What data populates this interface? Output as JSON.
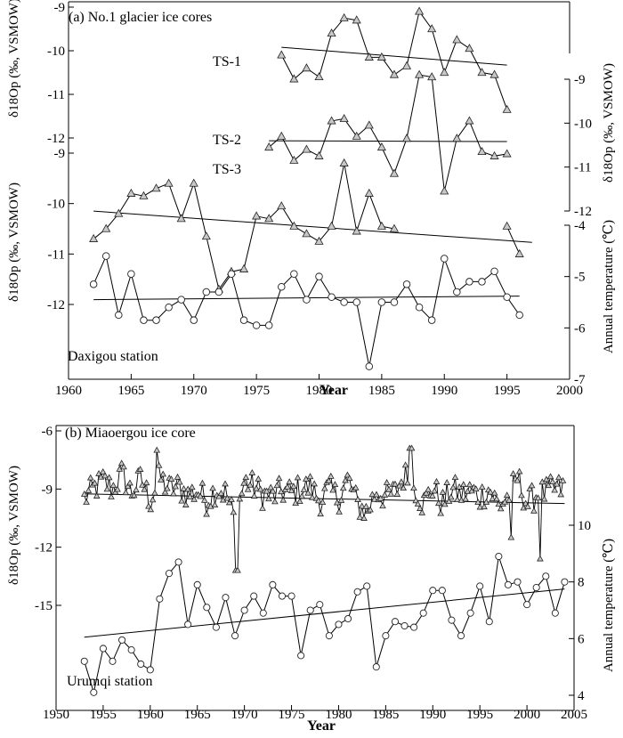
{
  "chart_data": [
    {
      "type": "line",
      "title": "(a) No.1 glacier ice cores",
      "xlabel": "Year",
      "xlim": [
        1960,
        2000
      ],
      "xticks": [
        1960,
        1965,
        1970,
        1975,
        1980,
        1985,
        1990,
        1995,
        2000
      ],
      "axes": [
        {
          "id": "ts1_axis",
          "label": "δ18Op (‰, VSMOW)",
          "side": "left",
          "ticks": [
            -9,
            -10,
            -11,
            -12
          ],
          "tick_labels": [
            "-9",
            "-10",
            "-11",
            "-12"
          ]
        },
        {
          "id": "ts2_axis",
          "label": "δ18Op (‰, VSMOW)",
          "side": "right",
          "ticks": [
            -9,
            -10,
            -11,
            -12
          ],
          "tick_labels": [
            "-9",
            "-10",
            "-11",
            "-12"
          ]
        },
        {
          "id": "ts3_axis",
          "label": "δ18Op (‰, VSMOW)",
          "side": "left",
          "ticks": [
            -9,
            -10,
            -11,
            -12
          ],
          "tick_labels": [
            "-9",
            "-10",
            "-11",
            "-12"
          ]
        },
        {
          "id": "temp_axis",
          "label": "Annual temperature (℃)",
          "side": "right",
          "ticks": [
            -4,
            -5,
            -6,
            -7
          ],
          "tick_labels": [
            "-4",
            "-5",
            "-6",
            "-7"
          ]
        }
      ],
      "series": [
        {
          "name": "TS-1",
          "axis": "ts1_axis",
          "marker": "triangle",
          "x": [
            1977,
            1978,
            1979,
            1980,
            1981,
            1982,
            1983,
            1984,
            1985,
            1986,
            1987,
            1988,
            1989,
            1990,
            1991,
            1992,
            1993,
            1994,
            1995
          ],
          "y": [
            -10.1,
            -10.65,
            -10.4,
            -10.6,
            -9.6,
            -9.25,
            -9.3,
            -10.15,
            -10.15,
            -10.55,
            -10.35,
            -9.1,
            -9.5,
            -10.5,
            -9.75,
            -9.95,
            -10.5,
            -10.55,
            -11.35
          ],
          "trend": [
            [
              1977,
              -9.92
            ],
            [
              1995,
              -10.33
            ]
          ]
        },
        {
          "name": "TS-2",
          "axis": "ts2_axis",
          "marker": "triangle",
          "x": [
            1976,
            1977,
            1978,
            1979,
            1980,
            1981,
            1982,
            1983,
            1984,
            1985,
            1986,
            1987,
            1988,
            1989,
            1990,
            1991,
            1992,
            1993,
            1994,
            1995
          ],
          "y": [
            -10.55,
            -10.3,
            -10.85,
            -10.6,
            -10.75,
            -9.95,
            -9.9,
            -10.3,
            -10.05,
            -10.55,
            -11.15,
            -10.35,
            -8.9,
            -8.95,
            -11.55,
            -10.35,
            -9.95,
            -10.65,
            -10.75,
            -10.7
          ],
          "trend": [
            [
              1976,
              -10.4
            ],
            [
              1995,
              -10.42
            ]
          ]
        },
        {
          "name": "TS-3",
          "axis": "ts3_axis",
          "marker": "triangle",
          "x": [
            1962,
            1963,
            1964,
            1965,
            1966,
            1967,
            1968,
            1969,
            1970,
            1971,
            1972,
            1973,
            1974,
            1975,
            1976,
            1977,
            1978,
            1979,
            1980,
            1981,
            1982,
            1983,
            1984,
            1985,
            1986,
            1995,
            1996
          ],
          "y": [
            -10.7,
            -10.5,
            -10.2,
            -9.8,
            -9.85,
            -9.7,
            -9.6,
            -10.3,
            -9.6,
            -10.65,
            -11.7,
            -11.35,
            -11.3,
            -10.25,
            -10.3,
            -10.05,
            -10.45,
            -10.6,
            -10.75,
            -10.45,
            -9.2,
            -10.55,
            -9.8,
            -10.45,
            -10.5,
            -10.45,
            -11.0
          ],
          "trend": [
            [
              1962,
              -10.15
            ],
            [
              1997,
              -10.77
            ]
          ]
        },
        {
          "name": "Daxigou station",
          "axis": "temp_axis",
          "marker": "circle",
          "x": [
            1962,
            1963,
            1964,
            1965,
            1966,
            1967,
            1968,
            1969,
            1970,
            1971,
            1972,
            1973,
            1974,
            1975,
            1976,
            1977,
            1978,
            1979,
            1980,
            1981,
            1982,
            1983,
            1984,
            1985,
            1986,
            1987,
            1988,
            1989,
            1990,
            1991,
            1992,
            1993,
            1994,
            1995,
            1996
          ],
          "y": [
            -5.15,
            -4.6,
            -5.75,
            -4.95,
            -5.85,
            -5.85,
            -5.6,
            -5.45,
            -5.85,
            -5.3,
            -5.3,
            -4.95,
            -5.85,
            -5.95,
            -5.95,
            -5.2,
            -4.95,
            -5.45,
            -5.0,
            -5.4,
            -5.5,
            -5.5,
            -6.75,
            -5.5,
            -5.5,
            -5.15,
            -5.6,
            -5.85,
            -4.65,
            -5.3,
            -5.1,
            -5.1,
            -4.9,
            -5.4,
            -5.75
          ],
          "trend": [
            [
              1962,
              -5.45
            ],
            [
              1996,
              -5.38
            ]
          ]
        }
      ],
      "annotations": [
        "TS-1",
        "TS-2",
        "TS-3",
        "Daxigou station"
      ]
    },
    {
      "type": "line",
      "title": "(b) Miaoergou ice core",
      "xlabel": "Year",
      "xlim": [
        1950,
        2005
      ],
      "xticks": [
        1950,
        1955,
        1960,
        1965,
        1970,
        1975,
        1980,
        1985,
        1990,
        1995,
        2000,
        2005
      ],
      "axes": [
        {
          "id": "mg_axis",
          "label": "δ18Op (‰, VSMOW)",
          "side": "left",
          "ticks": [
            -6,
            -9,
            -12,
            -15
          ],
          "tick_labels": [
            "-6",
            "-9",
            "-12",
            "-15"
          ]
        },
        {
          "id": "ur_axis",
          "label": "Annual temperature (℃)",
          "side": "right",
          "ticks": [
            10,
            8,
            6,
            4
          ],
          "tick_labels": [
            "10",
            "8",
            "6",
            "4"
          ]
        }
      ],
      "series": [
        {
          "name": "Miaoergou ice core",
          "axis": "mg_axis",
          "marker": "triangle",
          "anchors": [
            [
              1953,
              -9.5
            ],
            [
              1954,
              -9.0
            ],
            [
              1955,
              -8.6
            ],
            [
              1956,
              -9.0
            ],
            [
              1957,
              -8.2
            ],
            [
              1958,
              -9.2
            ],
            [
              1959,
              -8.5
            ],
            [
              1960,
              -9.6
            ],
            [
              1961,
              -8.4
            ],
            [
              1962,
              -9.0
            ],
            [
              1963,
              -8.9
            ],
            [
              1964,
              -9.3
            ],
            [
              1965,
              -9.1
            ],
            [
              1966,
              -9.6
            ],
            [
              1967,
              -9.0
            ],
            [
              1968,
              -9.2
            ],
            [
              1969,
              -10.6
            ],
            [
              1970,
              -8.6
            ],
            [
              1971,
              -8.9
            ],
            [
              1972,
              -9.3
            ],
            [
              1973,
              -9.4
            ],
            [
              1974,
              -9.1
            ],
            [
              1975,
              -9.2
            ],
            [
              1976,
              -9.0
            ],
            [
              1977,
              -8.9
            ],
            [
              1978,
              -9.6
            ],
            [
              1979,
              -9.0
            ],
            [
              1980,
              -9.5
            ],
            [
              1981,
              -8.5
            ],
            [
              1982,
              -9.8
            ],
            [
              1983,
              -10.2
            ],
            [
              1984,
              -9.1
            ],
            [
              1985,
              -9.4
            ],
            [
              1986,
              -9.2
            ],
            [
              1987,
              -8.3
            ],
            [
              1988,
              -8.8
            ],
            [
              1989,
              -9.8
            ],
            [
              1990,
              -8.9
            ],
            [
              1991,
              -9.8
            ],
            [
              1992,
              -9.0
            ],
            [
              1993,
              -9.3
            ],
            [
              1994,
              -9.1
            ],
            [
              1995,
              -9.4
            ],
            [
              1996,
              -9.0
            ],
            [
              1997,
              -9.9
            ],
            [
              1998,
              -9.4
            ],
            [
              1999,
              -8.4
            ],
            [
              2000,
              -9.8
            ],
            [
              2001,
              -9.3
            ],
            [
              2002,
              -9.2
            ],
            [
              2003,
              -9.0
            ],
            [
              2004,
              -9.0
            ]
          ],
          "trend": [
            [
              1953,
              -9.25
            ],
            [
              2004,
              -9.75
            ]
          ]
        },
        {
          "name": "Urumqi station",
          "axis": "ur_axis",
          "marker": "circle",
          "x": [
            1953,
            1954,
            1955,
            1956,
            1957,
            1958,
            1959,
            1960,
            1961,
            1962,
            1963,
            1964,
            1965,
            1966,
            1967,
            1968,
            1969,
            1970,
            1971,
            1972,
            1973,
            1974,
            1975,
            1976,
            1977,
            1978,
            1979,
            1980,
            1981,
            1982,
            1983,
            1984,
            1985,
            1986,
            1987,
            1988,
            1989,
            1990,
            1991,
            1992,
            1993,
            1994,
            1995,
            1996,
            1997,
            1998,
            1999,
            2000,
            2001,
            2002,
            2003,
            2004
          ],
          "y": [
            5.2,
            4.1,
            5.65,
            5.2,
            5.95,
            5.6,
            5.1,
            4.9,
            7.4,
            8.3,
            8.7,
            6.5,
            7.9,
            7.1,
            6.4,
            7.45,
            6.1,
            7.0,
            7.5,
            6.9,
            7.9,
            7.5,
            7.5,
            5.4,
            7.0,
            7.2,
            6.1,
            6.5,
            6.7,
            7.65,
            7.85,
            5.0,
            6.1,
            6.6,
            6.45,
            6.4,
            6.9,
            7.7,
            7.7,
            6.65,
            6.1,
            6.9,
            7.85,
            6.6,
            8.9,
            7.9,
            8.0,
            7.2,
            7.8,
            8.2,
            6.9,
            8.0
          ],
          "trend": [
            [
              1953,
              6.05
            ],
            [
              2004,
              7.75
            ]
          ]
        }
      ],
      "annotations": [
        "Urumqi station"
      ]
    }
  ]
}
